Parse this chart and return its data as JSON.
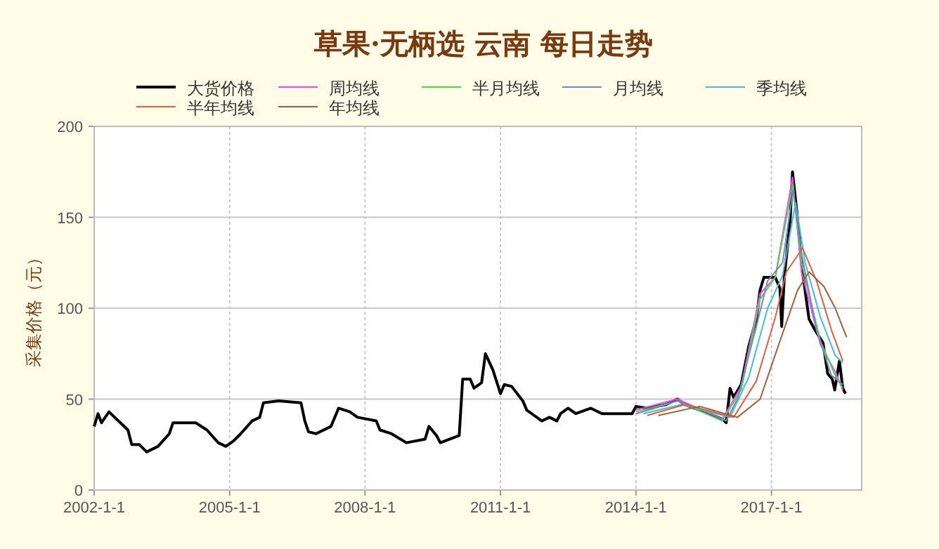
{
  "chart_data": {
    "type": "line",
    "title": "草果·无柄选 云南 每日走势",
    "ylabel": "采集价格（元）",
    "legend": "top",
    "grid": true,
    "line_style": "solid",
    "xlim": [
      "2002-01-01",
      "2019-01-01"
    ],
    "xticks": [
      {
        "value": "2002-01-01",
        "label": "2002-1-1"
      },
      {
        "value": "2005-01-01",
        "label": "2005-1-1"
      },
      {
        "value": "2008-01-01",
        "label": "2008-1-1"
      },
      {
        "value": "2011-01-01",
        "label": "2011-1-1"
      },
      {
        "value": "2014-01-01",
        "label": "2014-1-1"
      },
      {
        "value": "2017-01-01",
        "label": "2017-1-1"
      }
    ],
    "ylim": [
      0,
      200
    ],
    "yticks": [
      0,
      50,
      100,
      150,
      200
    ],
    "series": [
      {
        "name": "大货价格",
        "color": "#000000",
        "x": [
          "2002-01",
          "2002-02",
          "2002-03",
          "2002-05",
          "2002-07",
          "2002-10",
          "2002-11",
          "2003-01",
          "2003-03",
          "2003-06",
          "2003-09",
          "2003-10",
          "2004-04",
          "2004-07",
          "2004-10",
          "2004-12",
          "2005-02",
          "2005-04",
          "2005-07",
          "2005-09",
          "2005-10",
          "2006-02",
          "2006-08",
          "2006-09",
          "2006-10",
          "2006-12",
          "2007-04",
          "2007-06",
          "2007-09",
          "2007-11",
          "2008-04",
          "2008-05",
          "2008-08",
          "2008-12",
          "2009-05",
          "2009-06",
          "2009-08",
          "2009-09",
          "2010-02",
          "2010-03",
          "2010-05",
          "2010-06",
          "2010-08",
          "2010-09",
          "2010-11",
          "2011-01",
          "2011-02",
          "2011-04",
          "2011-07",
          "2011-08",
          "2011-12",
          "2012-02",
          "2012-04",
          "2012-05",
          "2012-07",
          "2012-09",
          "2013-01",
          "2013-04",
          "2013-12",
          "2014-01",
          "2014-04",
          "2014-09",
          "2014-12",
          "2015-02",
          "2015-06",
          "2015-12",
          "2016-01",
          "2016-02",
          "2016-03",
          "2016-05",
          "2016-07",
          "2016-09",
          "2016-10",
          "2016-11",
          "2017-02",
          "2017-03-10",
          "2017-03-25",
          "2017-04-15",
          "2017-06-01",
          "2017-06-20",
          "2017-07-10",
          "2017-07-28",
          "2017-09-05",
          "2017-11-01",
          "2017-12-28",
          "2018-02-22",
          "2018-04-01",
          "2018-05-08",
          "2018-05-28",
          "2018-07-05",
          "2018-08-01",
          "2018-08-23"
        ],
        "values": [
          35,
          42,
          37,
          43,
          39,
          33,
          25,
          25,
          21,
          24,
          31,
          37,
          37,
          33,
          26,
          24,
          27,
          31,
          38,
          40,
          48,
          49,
          48,
          38,
          32,
          31,
          35,
          45,
          43,
          40,
          38,
          33,
          31,
          26,
          28,
          35,
          30,
          26,
          30,
          61,
          61,
          56,
          59,
          75,
          66,
          53,
          58,
          57,
          49,
          44,
          38,
          40,
          38,
          42,
          45,
          42,
          45,
          42,
          42,
          46,
          45,
          47,
          50,
          47,
          44,
          39,
          37,
          56,
          51,
          58,
          79,
          94,
          110,
          117,
          117,
          111,
          90,
          117,
          148,
          175,
          163,
          151,
          122,
          94,
          87,
          81,
          64,
          61,
          55,
          71,
          56,
          53
        ]
      },
      {
        "name": "周均线",
        "color": "#ff40ff",
        "x": [
          "2014-01",
          "2014-12",
          "2015-12",
          "2016-05",
          "2016-10",
          "2017-02",
          "2017-06-20",
          "2017-09",
          "2018-02",
          "2018-06",
          "2018-08"
        ],
        "values": [
          44,
          50,
          39,
          57,
          108,
          117,
          172,
          120,
          80,
          65,
          55
        ]
      },
      {
        "name": "半月均线",
        "color": "#40e040",
        "x": [
          "2014-01",
          "2014-12",
          "2015-12",
          "2016-05",
          "2016-10",
          "2017-02",
          "2017-06-22",
          "2017-09",
          "2018-02",
          "2018-06",
          "2018-08"
        ],
        "values": [
          43,
          49,
          38,
          55,
          105,
          117,
          168,
          125,
          82,
          63,
          56
        ]
      },
      {
        "name": "月均线",
        "color": "#8080c8",
        "x": [
          "2014-01",
          "2014-06",
          "2014-12",
          "2015-06",
          "2016-01",
          "2016-04",
          "2016-09",
          "2016-12",
          "2017-04",
          "2017-06-25",
          "2017-09",
          "2018-01",
          "2018-05",
          "2018-08"
        ],
        "values": [
          42,
          45,
          49,
          45,
          38,
          50,
          90,
          115,
          125,
          165,
          130,
          88,
          63,
          58
        ]
      },
      {
        "name": "季均线",
        "color": "#40c0d0",
        "x": [
          "2014-03",
          "2015-01",
          "2016-02",
          "2016-07",
          "2016-12",
          "2017-04",
          "2017-07-15",
          "2017-10",
          "2018-02",
          "2018-06",
          "2018-08"
        ],
        "values": [
          42,
          47,
          40,
          62,
          100,
          118,
          158,
          125,
          95,
          74,
          70
        ]
      },
      {
        "name": "半年均线",
        "color": "#e06040",
        "x": [
          "2014-04",
          "2015-02",
          "2016-03",
          "2016-09",
          "2017-02",
          "2017-05",
          "2017-09-10",
          "2018-01",
          "2018-05",
          "2018-08"
        ],
        "values": [
          41,
          47,
          40,
          60,
          95,
          120,
          133,
          115,
          88,
          71
        ]
      },
      {
        "name": "年均线",
        "color": "#a0603c",
        "x": [
          "2014-07",
          "2015-06",
          "2016-04",
          "2016-10",
          "2017-03",
          "2017-08",
          "2017-11",
          "2018-03",
          "2018-06",
          "2018-09"
        ],
        "values": [
          41,
          46,
          40,
          50,
          80,
          110,
          120,
          112,
          100,
          84
        ]
      }
    ]
  }
}
